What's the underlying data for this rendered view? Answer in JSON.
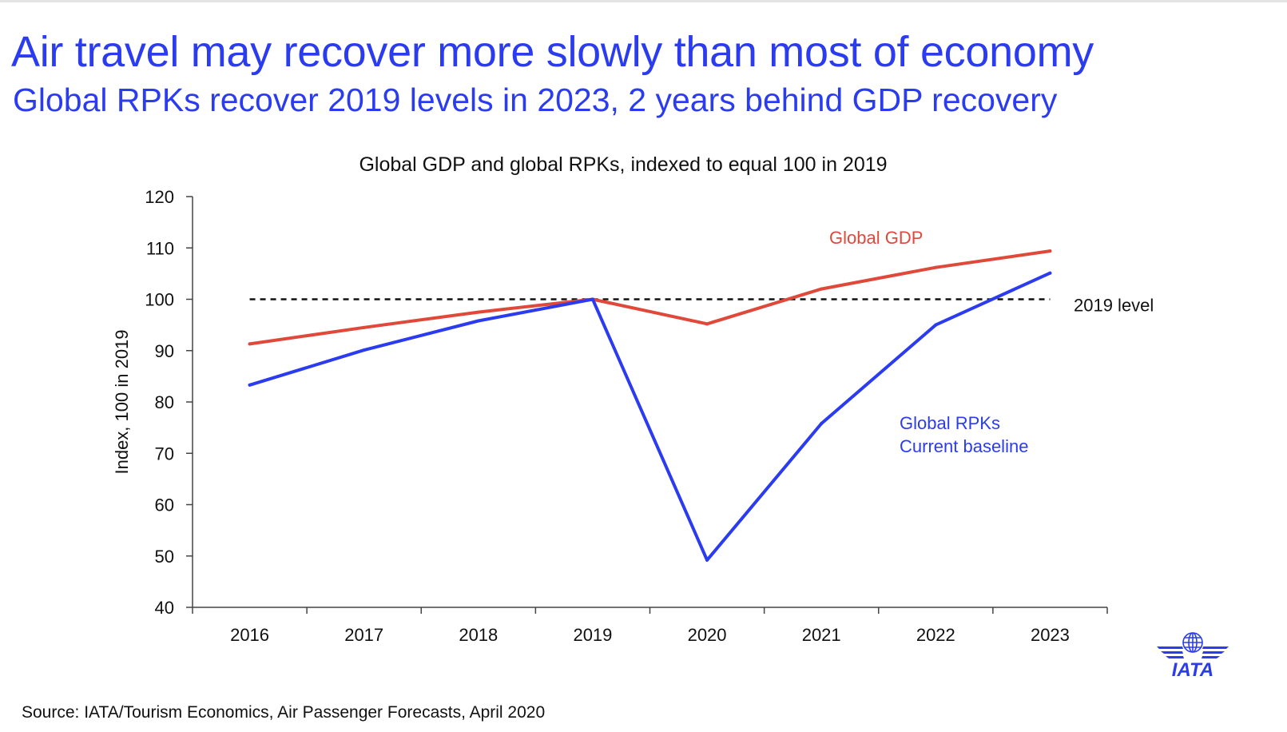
{
  "slide": {
    "title": "Air travel may recover more slowly than most of economy",
    "subtitle": "Global RPKs recover 2019 levels in 2023, 2 years behind GDP recovery",
    "source": "Source: IATA/Tourism Economics, Air Passenger Forecasts, April 2020",
    "logo_text": "IATA"
  },
  "colors": {
    "brand_blue": "#2b3cf0",
    "gdp_red": "#e0483a",
    "text": "#111111"
  },
  "chart_data": {
    "type": "line",
    "title": "Global GDP and global RPKs, indexed to equal 100 in 2019",
    "ylabel": "Index, 100 in 2019",
    "xlabel": "",
    "x": [
      "2016",
      "2017",
      "2018",
      "2019",
      "2020",
      "2021",
      "2022",
      "2023"
    ],
    "ylim": [
      40,
      120
    ],
    "yticks": [
      40,
      50,
      60,
      70,
      80,
      90,
      100,
      110,
      120
    ],
    "grid": false,
    "legend": "inline labels",
    "series": [
      {
        "name": "Global GDP",
        "values": [
          91.3,
          94.5,
          97.5,
          100,
          95.2,
          102,
          106.2,
          109.4
        ],
        "color": "#e0483a"
      },
      {
        "name": "Global RPKs Current baseline",
        "label_lines": [
          "Global RPKs",
          "Current baseline"
        ],
        "values": [
          83.3,
          90.1,
          95.8,
          100,
          49.2,
          75.8,
          95,
          105.1
        ],
        "color": "#2b3cf0"
      }
    ],
    "reference_line": {
      "label": "2019 level",
      "value": 100,
      "color": "#111111",
      "style": "dashed"
    }
  }
}
